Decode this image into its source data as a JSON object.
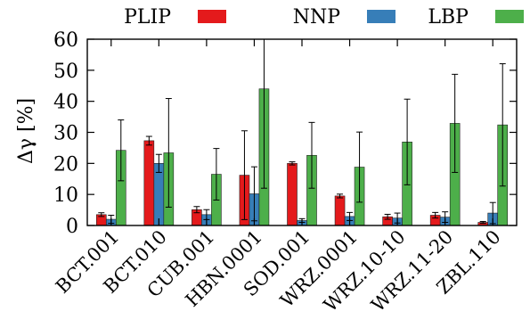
{
  "chart_data": {
    "type": "bar",
    "title": "",
    "xlabel": "",
    "ylabel": "Δγ [%]",
    "ylim": [
      0,
      60
    ],
    "yticks": [
      0,
      10,
      20,
      30,
      40,
      50,
      60
    ],
    "grid": false,
    "legend_position": "top",
    "categories": [
      "BCT.001",
      "BCT.010",
      "CUB.001",
      "HBN.0001",
      "SOD.001",
      "WRZ.0001",
      "WRZ.10-10",
      "WRZ.11-20",
      "ZBL.110"
    ],
    "series": [
      {
        "name": "PLIP",
        "color": "#e41a1c",
        "values": [
          3.5,
          27.3,
          5.1,
          16.2,
          20.0,
          9.5,
          2.8,
          3.3,
          1.0
        ],
        "errors": [
          0.6,
          1.4,
          1.0,
          14.3,
          0.5,
          0.6,
          0.8,
          0.9,
          0.3
        ]
      },
      {
        "name": "NNP",
        "color": "#377eb8",
        "values": [
          2.0,
          20.0,
          3.5,
          10.2,
          1.6,
          2.9,
          2.4,
          2.7,
          4.0
        ],
        "errors": [
          1.3,
          2.9,
          1.6,
          8.7,
          0.6,
          1.3,
          1.6,
          1.7,
          3.4
        ]
      },
      {
        "name": "LBP",
        "color": "#4daf4a",
        "values": [
          24.2,
          23.4,
          16.5,
          44.0,
          22.6,
          18.8,
          26.9,
          32.9,
          32.4
        ],
        "errors": [
          9.8,
          17.5,
          8.3,
          32.0,
          10.6,
          11.3,
          13.8,
          15.8,
          19.7
        ]
      }
    ]
  }
}
